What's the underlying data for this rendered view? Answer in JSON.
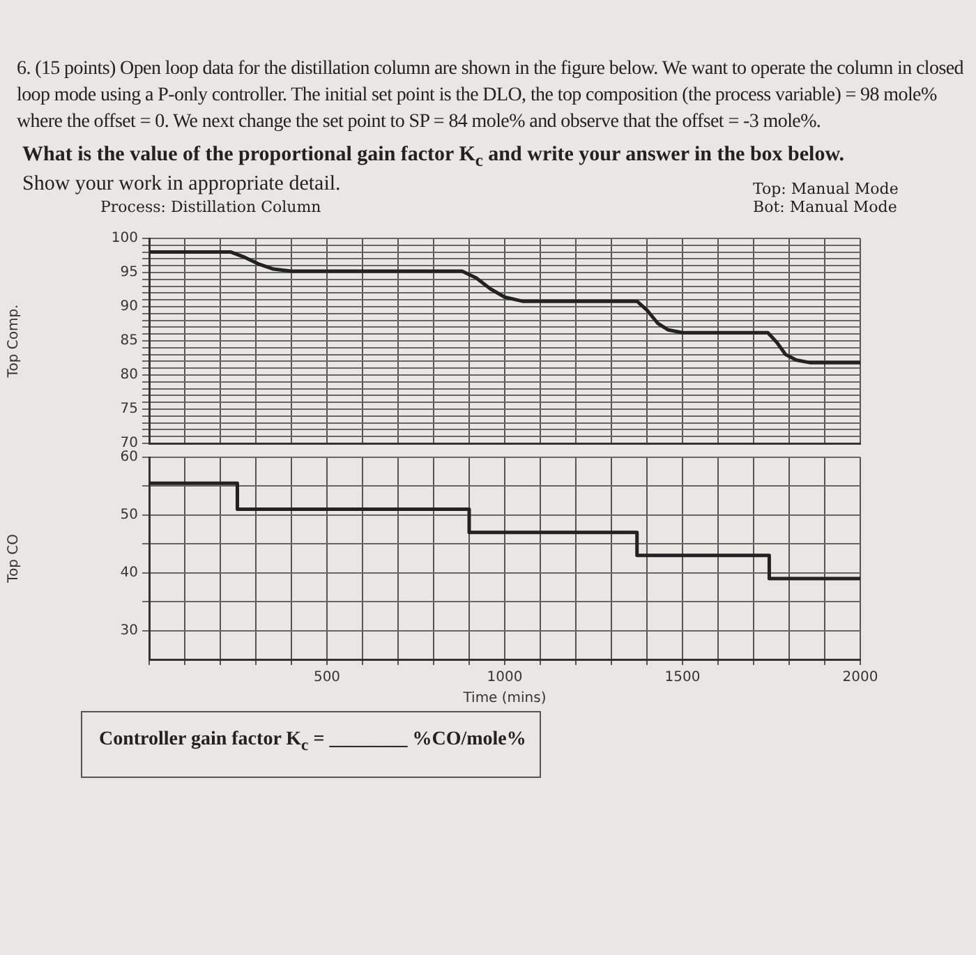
{
  "chart_data": [
    {
      "type": "line",
      "title": "Process: Distillation Column",
      "ylabel": "Top Comp.",
      "tick_labels": "y",
      "grid": true,
      "annotations": [
        "6. (15 points) Open loop data for the distillation column are shown in the figure below. We want to operate the column in closed loop mode using a P-only controller. The initial set point is the DLO, the top composition (the process variable) = 98 mole% where the offset = 0. We next change the set point to SP = 84 mole% and observe that the offset = -3 mole%.",
        "What is the value of the proportional gain factor K$_{c}$ and write your answer in the box below.",
        "Show your work in appropriate detail.",
        "Top: Manual Mode",
        "Bot: Manual Mode"
      ],
      "xlim": [
        0,
        2000
      ],
      "xticks": [
        {
          "value": 0,
          "label": null
        },
        {
          "value": 100,
          "label": null
        },
        {
          "value": 200,
          "label": null
        },
        {
          "value": 300,
          "label": null
        },
        {
          "value": 400,
          "label": null
        },
        {
          "value": 500,
          "label": null
        },
        {
          "value": 600,
          "label": null
        },
        {
          "value": 700,
          "label": null
        },
        {
          "value": 800,
          "label": null
        },
        {
          "value": 900,
          "label": null
        },
        {
          "value": 1000,
          "label": null
        },
        {
          "value": 1100,
          "label": null
        },
        {
          "value": 1200,
          "label": null
        },
        {
          "value": 1300,
          "label": null
        },
        {
          "value": 1400,
          "label": null
        },
        {
          "value": 1500,
          "label": null
        },
        {
          "value": 1600,
          "label": null
        },
        {
          "value": 1700,
          "label": null
        },
        {
          "value": 1800,
          "label": null
        },
        {
          "value": 1900,
          "label": null
        },
        {
          "value": 2000,
          "label": null
        }
      ],
      "ylim": [
        70,
        100
      ],
      "yticks": [
        70,
        {
          "value": 71,
          "label": null
        },
        {
          "value": 72,
          "label": null
        },
        {
          "value": 73,
          "label": null
        },
        {
          "value": 74,
          "label": null
        },
        75,
        {
          "value": 76,
          "label": null
        },
        {
          "value": 77,
          "label": null
        },
        {
          "value": 78,
          "label": null
        },
        {
          "value": 79,
          "label": null
        },
        80,
        {
          "value": 81,
          "label": null
        },
        {
          "value": 82,
          "label": null
        },
        {
          "value": 83,
          "label": null
        },
        {
          "value": 84,
          "label": null
        },
        85,
        {
          "value": 86,
          "label": null
        },
        {
          "value": 87,
          "label": null
        },
        {
          "value": 88,
          "label": null
        },
        {
          "value": 89,
          "label": null
        },
        90,
        {
          "value": 91,
          "label": null
        },
        {
          "value": 92,
          "label": null
        },
        {
          "value": 93,
          "label": null
        },
        {
          "value": 94,
          "label": null
        },
        95,
        {
          "value": 96,
          "label": null
        },
        {
          "value": 97,
          "label": null
        },
        {
          "value": 98,
          "label": null
        },
        {
          "value": 99,
          "label": null
        },
        100
      ],
      "series": [
        {
          "color": "#222222",
          "x": [
            0,
            230,
            270,
            310,
            350,
            400,
            880,
            920,
            960,
            1000,
            1050,
            1372,
            1400,
            1430,
            1460,
            1500,
            1740,
            1765,
            1790,
            1820,
            1860,
            2000
          ],
          "values": [
            98,
            98,
            97.2,
            96.2,
            95.5,
            95.2,
            95.2,
            94.2,
            92.6,
            91.4,
            90.8,
            90.8,
            89.5,
            87.6,
            86.6,
            86.2,
            86.2,
            84.8,
            83,
            82.2,
            81.8,
            81.8
          ]
        }
      ]
    },
    {
      "type": "step",
      "ylabel": "Top CO",
      "xlabel": "Time (mins)",
      "grid": true,
      "annotations": [
        "Controller gain factor K$_{c}$ = ________ %CO/mole%"
      ],
      "xlim": [
        0,
        2000
      ],
      "xticks": [
        {
          "value": 0,
          "label": null
        },
        {
          "value": 100,
          "label": null
        },
        {
          "value": 200,
          "label": null
        },
        {
          "value": 300,
          "label": null
        },
        {
          "value": 400,
          "label": null
        },
        500,
        {
          "value": 600,
          "label": null
        },
        {
          "value": 700,
          "label": null
        },
        {
          "value": 800,
          "label": null
        },
        {
          "value": 900,
          "label": null
        },
        1000,
        {
          "value": 1100,
          "label": null
        },
        {
          "value": 1200,
          "label": null
        },
        {
          "value": 1300,
          "label": null
        },
        {
          "value": 1400,
          "label": null
        },
        1500,
        {
          "value": 1600,
          "label": null
        },
        {
          "value": 1700,
          "label": null
        },
        {
          "value": 1800,
          "label": null
        },
        {
          "value": 1900,
          "label": null
        },
        2000
      ],
      "ylim": [
        25,
        60
      ],
      "yticks": [
        30,
        {
          "value": 35,
          "label": null
        },
        40,
        {
          "value": 45,
          "label": null
        },
        50,
        {
          "value": 55,
          "label": null
        },
        60
      ],
      "series": [
        {
          "color": "#222222",
          "x": [
            0,
            248,
            900,
            1372,
            1744,
            2000
          ],
          "values": [
            55.5,
            51,
            47,
            43,
            39,
            39
          ]
        }
      ]
    }
  ]
}
